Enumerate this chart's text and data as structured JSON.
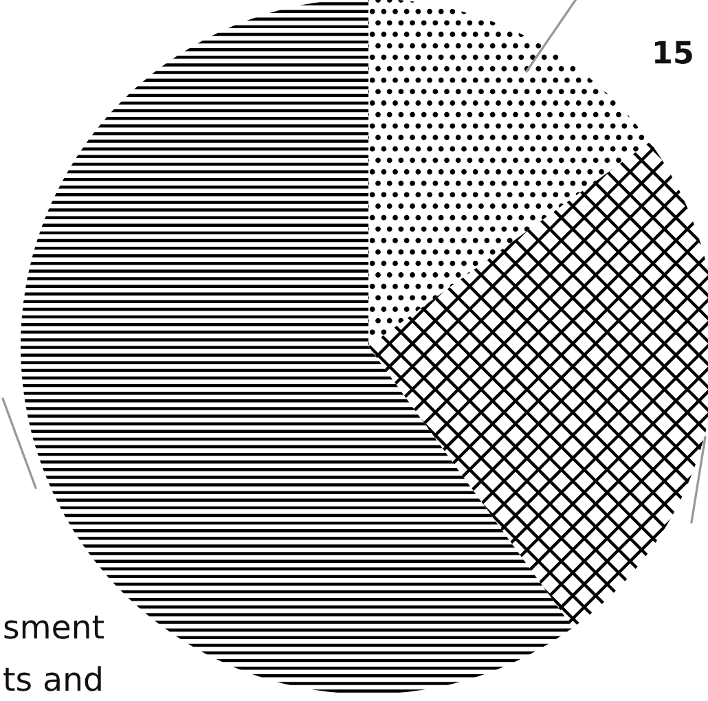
{
  "chart_data": {
    "type": "pie",
    "categories": [
      null,
      null,
      null
    ],
    "values": [
      15,
      25,
      60
    ],
    "colors": [
      "#ffffff",
      "#ffffff",
      "#ffffff"
    ],
    "annotations": [
      "15",
      "sment",
      "ts and"
    ]
  }
}
